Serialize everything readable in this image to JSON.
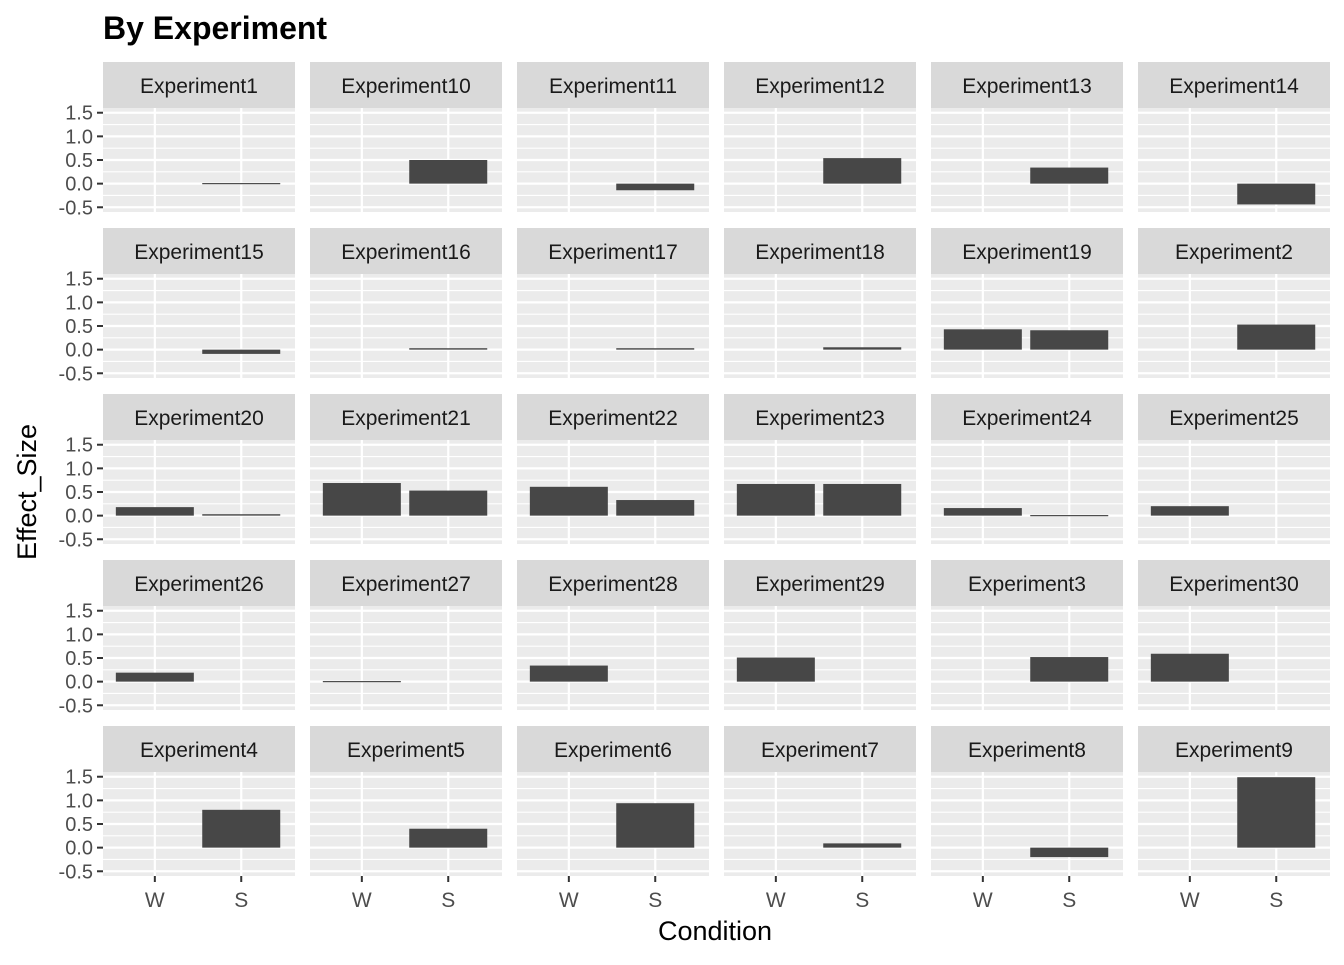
{
  "chart_data": {
    "type": "bar",
    "title": "By Experiment",
    "xlabel": "Condition",
    "ylabel": "Effect_Size",
    "categories": [
      "W",
      "S"
    ],
    "ylim": [
      -0.6,
      1.6
    ],
    "yticks": [
      -0.5,
      0.0,
      0.5,
      1.0,
      1.5
    ],
    "ytick_labels": [
      "-0.5",
      "0.0",
      "0.5",
      "1.0",
      "1.5"
    ],
    "grid": true,
    "layout": {
      "rows": 5,
      "cols": 6
    },
    "bar_color": "#474747",
    "panel_bg": "#ebebeb",
    "strip_bg": "#d9d9d9",
    "panels": [
      {
        "name": "Experiment1",
        "W": null,
        "S": -0.02
      },
      {
        "name": "Experiment10",
        "W": null,
        "S": 0.5
      },
      {
        "name": "Experiment11",
        "W": null,
        "S": -0.14
      },
      {
        "name": "Experiment12",
        "W": null,
        "S": 0.54
      },
      {
        "name": "Experiment13",
        "W": null,
        "S": 0.34
      },
      {
        "name": "Experiment14",
        "W": null,
        "S": -0.44
      },
      {
        "name": "Experiment15",
        "W": null,
        "S": -0.09
      },
      {
        "name": "Experiment16",
        "W": null,
        "S": 0.03
      },
      {
        "name": "Experiment17",
        "W": null,
        "S": 0.03
      },
      {
        "name": "Experiment18",
        "W": null,
        "S": 0.05
      },
      {
        "name": "Experiment19",
        "W": 0.43,
        "S": 0.41
      },
      {
        "name": "Experiment2",
        "W": null,
        "S": 0.53
      },
      {
        "name": "Experiment20",
        "W": 0.18,
        "S": 0.03
      },
      {
        "name": "Experiment21",
        "W": 0.69,
        "S": 0.53
      },
      {
        "name": "Experiment22",
        "W": 0.61,
        "S": 0.33
      },
      {
        "name": "Experiment23",
        "W": 0.67,
        "S": 0.67
      },
      {
        "name": "Experiment24",
        "W": 0.16,
        "S": 0.01
      },
      {
        "name": "Experiment25",
        "W": 0.2,
        "S": null
      },
      {
        "name": "Experiment26",
        "W": 0.19,
        "S": null
      },
      {
        "name": "Experiment27",
        "W": 0.0,
        "S": null
      },
      {
        "name": "Experiment28",
        "W": 0.34,
        "S": null
      },
      {
        "name": "Experiment29",
        "W": 0.51,
        "S": null
      },
      {
        "name": "Experiment3",
        "W": null,
        "S": 0.52
      },
      {
        "name": "Experiment30",
        "W": 0.59,
        "S": null
      },
      {
        "name": "Experiment4",
        "W": null,
        "S": 0.8
      },
      {
        "name": "Experiment5",
        "W": null,
        "S": 0.4
      },
      {
        "name": "Experiment6",
        "W": null,
        "S": 0.94
      },
      {
        "name": "Experiment7",
        "W": null,
        "S": 0.09
      },
      {
        "name": "Experiment8",
        "W": null,
        "S": -0.2
      },
      {
        "name": "Experiment9",
        "W": null,
        "S": 1.49
      }
    ]
  }
}
